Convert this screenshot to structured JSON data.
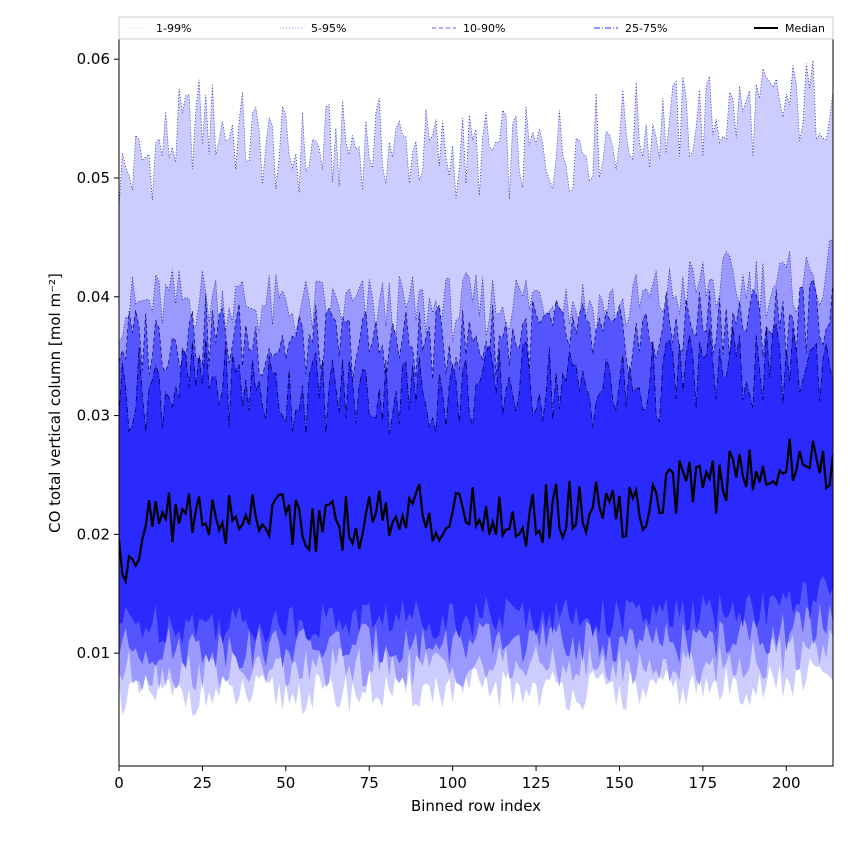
{
  "chart_data": {
    "type": "area",
    "xlabel": "Binned row index",
    "ylabel": "CO total vertical column [mol m⁻²]",
    "xlim": [
      0,
      214
    ],
    "ylim": [
      0.0005,
      0.0617
    ],
    "x_ticks": [
      "0",
      "25",
      "50",
      "75",
      "100",
      "125",
      "150",
      "175",
      "200"
    ],
    "x_tick_values": [
      0,
      25,
      50,
      75,
      100,
      125,
      150,
      175,
      200
    ],
    "y_ticks": [
      "0.01",
      "0.02",
      "0.03",
      "0.04",
      "0.05",
      "0.06"
    ],
    "y_tick_values": [
      0.01,
      0.02,
      0.03,
      0.04,
      0.05,
      0.06
    ],
    "legend_position": "top (horizontal, above plot)",
    "legend": [
      {
        "label": "1-99%",
        "color": "#ccccff",
        "style": "dotted"
      },
      {
        "label": "5-95%",
        "color": "#9999ff",
        "style": "dotted"
      },
      {
        "label": "10-90%",
        "color": "#5555ff",
        "style": "dashed"
      },
      {
        "label": "25-75%",
        "color": "#2a2aff",
        "style": "dashdot"
      },
      {
        "label": "Median",
        "color": "#000000",
        "style": "solid"
      }
    ],
    "series": [
      {
        "name": "1-99%",
        "fill": "#ccccff",
        "x": [
          0,
          25,
          50,
          75,
          100,
          125,
          150,
          175,
          200,
          214
        ],
        "upper": [
          0.05,
          0.055,
          0.052,
          0.053,
          0.052,
          0.052,
          0.054,
          0.055,
          0.056,
          0.057
        ],
        "lower": [
          0.0065,
          0.0065,
          0.0065,
          0.0068,
          0.007,
          0.007,
          0.0068,
          0.007,
          0.0075,
          0.0085
        ]
      },
      {
        "name": "5-95%",
        "fill": "#9999ff",
        "x": [
          0,
          25,
          50,
          75,
          100,
          125,
          150,
          175,
          200,
          214
        ],
        "upper": [
          0.039,
          0.04,
          0.039,
          0.039,
          0.039,
          0.04,
          0.039,
          0.041,
          0.041,
          0.042
        ],
        "lower": [
          0.0085,
          0.0085,
          0.0085,
          0.0088,
          0.0088,
          0.009,
          0.0088,
          0.009,
          0.0098,
          0.011
        ]
      },
      {
        "name": "10-90%",
        "fill": "#5555ff",
        "x": [
          0,
          25,
          50,
          75,
          100,
          125,
          150,
          175,
          200,
          214
        ],
        "upper": [
          0.036,
          0.037,
          0.036,
          0.036,
          0.036,
          0.037,
          0.036,
          0.038,
          0.038,
          0.039
        ],
        "lower": [
          0.0105,
          0.0105,
          0.0105,
          0.0108,
          0.0108,
          0.011,
          0.0108,
          0.011,
          0.0118,
          0.0128
        ]
      },
      {
        "name": "25-75%",
        "fill": "#2a2aff",
        "x": [
          0,
          25,
          50,
          75,
          100,
          125,
          150,
          175,
          200,
          214
        ],
        "upper": [
          0.032,
          0.033,
          0.032,
          0.032,
          0.032,
          0.033,
          0.032,
          0.034,
          0.034,
          0.035
        ],
        "lower": [
          0.0125,
          0.0125,
          0.0125,
          0.013,
          0.013,
          0.0132,
          0.013,
          0.0132,
          0.014,
          0.0152
        ]
      },
      {
        "name": "Median",
        "line": "#000000",
        "x": [
          0,
          10,
          20,
          30,
          40,
          50,
          60,
          70,
          80,
          90,
          100,
          110,
          120,
          130,
          140,
          150,
          160,
          170,
          180,
          190,
          200,
          214
        ],
        "values": [
          0.0175,
          0.021,
          0.022,
          0.021,
          0.022,
          0.022,
          0.02,
          0.021,
          0.022,
          0.022,
          0.021,
          0.022,
          0.021,
          0.022,
          0.022,
          0.022,
          0.022,
          0.025,
          0.024,
          0.026,
          0.026,
          0.026
        ]
      }
    ]
  }
}
